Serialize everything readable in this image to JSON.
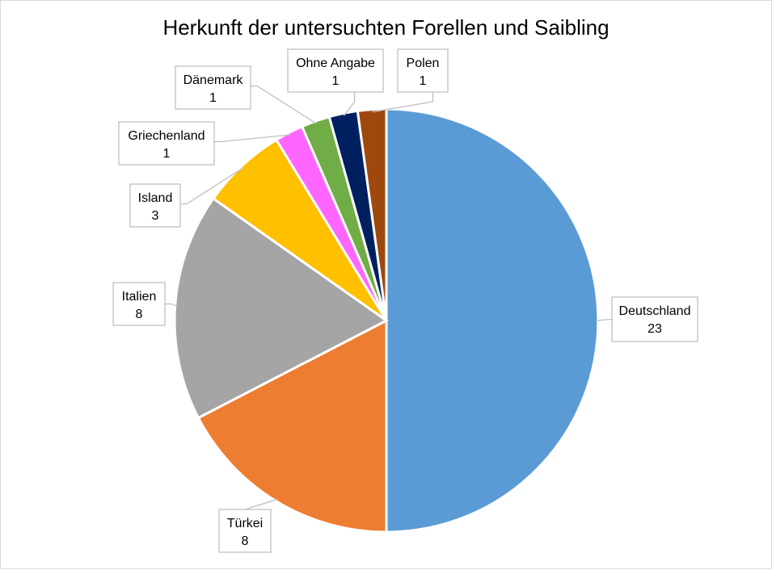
{
  "chart_data": {
    "type": "pie",
    "title": "Herkunft der untersuchten Forellen und Saibling",
    "slices": [
      {
        "label": "Deutschland",
        "value": 23,
        "color": "#5B9BD5"
      },
      {
        "label": "Türkei",
        "value": 8,
        "color": "#ED7D31"
      },
      {
        "label": "Italien",
        "value": 8,
        "color": "#A5A5A5"
      },
      {
        "label": "Island",
        "value": 3,
        "color": "#FFC000"
      },
      {
        "label": "Griechenland",
        "value": 1,
        "color": "#FF66FF"
      },
      {
        "label": "Dänemark",
        "value": 1,
        "color": "#70AD47"
      },
      {
        "label": "Ohne Angabe",
        "value": 1,
        "color": "#002060"
      },
      {
        "label": "Polen",
        "value": 1,
        "color": "#9E480E"
      }
    ],
    "data_labels": "label-and-value-with-leader-lines",
    "legend": "none"
  }
}
